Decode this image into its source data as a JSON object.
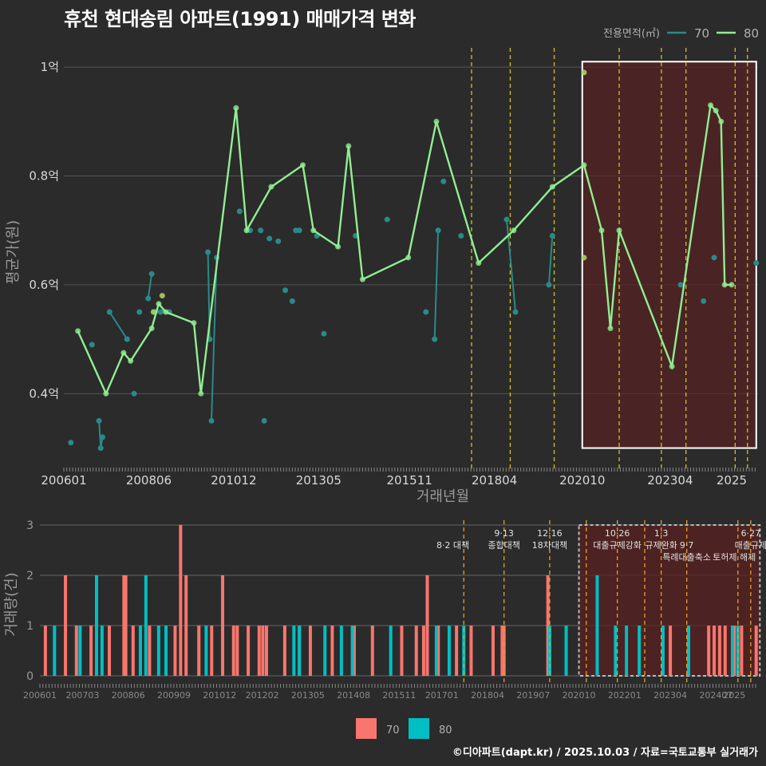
{
  "title": "휴천 현대송림 아파트(1991) 매매가격 변화",
  "credit": "©디아파트(dapt.kr) / 2025.10.03 / 자료=국토교통부 실거래가",
  "colors": {
    "background": "#2b2b2b",
    "grid": "#555555",
    "series70": "#2a8a8a",
    "series80": "#90ee90",
    "bar70": "#f8766d",
    "bar80": "#00bfc4",
    "policy": "#d4c020",
    "highlight_fill": "#5a2020",
    "text_muted": "#9a9a9a"
  },
  "chart_data": [
    {
      "type": "line",
      "title": "휴천 현대송림 아파트(1991) 매매가격 변화",
      "xlabel": "거래년월",
      "ylabel": "평균가(원)",
      "ylim": [
        0.27,
        1.05
      ],
      "xlim": [
        2006.0,
        2025.75
      ],
      "yticks": [
        0.4,
        0.6,
        0.8,
        1.0
      ],
      "ytick_labels": [
        "0.4억",
        "0.6억",
        "0.8억",
        "1억"
      ],
      "xtick_positions": [
        2006.0,
        2008.417,
        2010.833,
        2013.25,
        2015.833,
        2018.25,
        2020.75,
        2023.25,
        2025.0
      ],
      "xtick_labels": [
        "200601",
        "200806",
        "201012",
        "201305",
        "201511",
        "201804",
        "202010",
        "202304",
        "2025"
      ],
      "legend_title": "전용면적(㎡)",
      "legend": [
        "70",
        "80"
      ],
      "highlight_range": [
        2020.75,
        2025.7
      ],
      "policy_lines": [
        2017.6,
        2018.7,
        2019.95,
        2021.8,
        2023.0,
        2023.7,
        2025.1,
        2025.45
      ],
      "series": [
        {
          "name": "80",
          "x": [
            2006.4,
            2007.2,
            2007.7,
            2007.9,
            2008.5,
            2008.7,
            2008.9,
            2009.7,
            2009.9,
            2010.9,
            2011.2,
            2011.9,
            2012.8,
            2013.1,
            2013.8,
            2014.1,
            2014.5,
            2015.8,
            2016.6,
            2017.8,
            2018.8,
            2019.9,
            2020.8,
            2021.3,
            2021.55,
            2021.8,
            2023.3,
            2024.4,
            2024.55,
            2024.7,
            2024.8,
            2025.0
          ],
          "values": [
            0.515,
            0.4,
            0.475,
            0.46,
            0.52,
            0.565,
            0.55,
            0.53,
            0.4,
            0.925,
            0.7,
            0.78,
            0.82,
            0.7,
            0.67,
            0.855,
            0.61,
            0.65,
            0.9,
            0.64,
            0.7,
            0.78,
            0.82,
            0.7,
            0.52,
            0.7,
            0.45,
            0.93,
            0.92,
            0.9,
            0.6,
            0.6
          ]
        },
        {
          "name": "70",
          "x": [
            2006.2,
            2006.8,
            2007.0,
            2007.05,
            2007.1,
            2007.3,
            2007.8,
            2008.0,
            2008.15,
            2008.4,
            2008.5,
            2008.6,
            2008.75,
            2009.0,
            2010.1,
            2010.15,
            2010.2,
            2010.35,
            2011.0,
            2011.3,
            2011.6,
            2011.7,
            2011.85,
            2012.1,
            2012.3,
            2012.5,
            2012.6,
            2012.7,
            2013.2,
            2013.4,
            2014.3,
            2015.2,
            2016.3,
            2016.55,
            2016.65,
            2016.8,
            2017.3,
            2018.6,
            2018.85,
            2019.8,
            2019.9,
            2023.55,
            2024.2,
            2024.5,
            2025.7
          ],
          "values": [
            0.31,
            0.49,
            0.35,
            0.3,
            0.32,
            0.55,
            0.5,
            0.4,
            0.55,
            0.575,
            0.62,
            0.55,
            0.55,
            0.55,
            0.66,
            0.5,
            0.35,
            0.65,
            0.735,
            0.7,
            0.7,
            0.35,
            0.685,
            0.68,
            0.59,
            0.57,
            0.7,
            0.7,
            0.69,
            0.51,
            0.69,
            0.72,
            0.55,
            0.5,
            0.7,
            0.79,
            0.69,
            0.72,
            0.55,
            0.6,
            0.69,
            0.6,
            0.57,
            0.65,
            0.64
          ]
        }
      ]
    },
    {
      "type": "bar",
      "xlabel": "",
      "ylabel": "거래량(건)",
      "ylim": [
        0,
        3
      ],
      "yticks": [
        0,
        1,
        2,
        3
      ],
      "xtick_positions": [
        2006.0,
        2007.167,
        2008.417,
        2009.667,
        2010.917,
        2012.083,
        2013.333,
        2014.583,
        2015.833,
        2017.0,
        2018.25,
        2019.5,
        2020.75,
        2022.0,
        2023.25,
        2024.5,
        2025.0
      ],
      "xtick_labels": [
        "200601",
        "200703",
        "200806",
        "200909",
        "201012",
        "201202",
        "201305",
        "201408",
        "201511",
        "201701",
        "201804",
        "201907",
        "202010",
        "202201",
        "202304",
        "202407",
        "2025"
      ],
      "legend": [
        "70",
        "80"
      ],
      "highlight_range": [
        2020.75,
        2025.7
      ],
      "policy_lines": [
        2017.6,
        2018.7,
        2019.95,
        2020.95,
        2021.8,
        2022.55,
        2023.0,
        2023.7,
        2025.1,
        2025.45
      ],
      "annotations": [
        {
          "x": 2017.3,
          "label": "8·2 대책",
          "row": 1
        },
        {
          "x": 2018.7,
          "label": "9·13",
          "row": 0
        },
        {
          "x": 2018.7,
          "label": "종합대책",
          "row": 1
        },
        {
          "x": 2019.95,
          "label": "12·16",
          "row": 0
        },
        {
          "x": 2019.95,
          "label": "18차대책",
          "row": 1
        },
        {
          "x": 2021.8,
          "label": "10·26",
          "row": 0
        },
        {
          "x": 2021.8,
          "label": "대출규제강화",
          "row": 1
        },
        {
          "x": 2023.0,
          "label": "1·3",
          "row": 0
        },
        {
          "x": 2023.0,
          "label": "규제완화",
          "row": 1
        },
        {
          "x": 2023.7,
          "label": "9·7",
          "row": 1
        },
        {
          "x": 2023.7,
          "label": "특례대출축소",
          "row": 2
        },
        {
          "x": 2025.45,
          "label": "6·27",
          "row": 0
        },
        {
          "x": 2025.45,
          "label": "대출규제",
          "row": 1
        },
        {
          "x": 2025.0,
          "label": "토허제 해제",
          "row": 2
        }
      ],
      "series": [
        {
          "name": "70",
          "x": [
            2006.15,
            2006.7,
            2007.0,
            2007.4,
            2007.9,
            2008.3,
            2008.35,
            2008.55,
            2009.0,
            2009.7,
            2009.85,
            2010.0,
            2010.35,
            2010.7,
            2011.0,
            2011.3,
            2011.4,
            2011.7,
            2012.0,
            2012.1,
            2012.2,
            2012.7,
            2013.1,
            2013.4,
            2014.0,
            2014.6,
            2015.1,
            2015.9,
            2016.3,
            2016.5,
            2016.6,
            2016.9,
            2017.4,
            2017.8,
            2018.4,
            2018.65,
            2018.7,
            2019.9,
            2023.25,
            2024.3,
            2024.45,
            2024.6,
            2024.75,
            2025.0,
            2025.2,
            2025.6
          ],
          "values": [
            1,
            2,
            1,
            1,
            1,
            2,
            2,
            1,
            1,
            1,
            3,
            2,
            1,
            1,
            2,
            1,
            1,
            1,
            1,
            1,
            1,
            1,
            1,
            1,
            1,
            1,
            1,
            1,
            1,
            1,
            2,
            1,
            1,
            1,
            1,
            1,
            1,
            2,
            1,
            1,
            1,
            1,
            1,
            1,
            1,
            1
          ]
        },
        {
          "name": "80",
          "x": [
            2006.4,
            2007.1,
            2007.55,
            2007.7,
            2008.75,
            2008.9,
            2009.25,
            2009.45,
            2010.55,
            2012.95,
            2013.1,
            2013.8,
            2014.25,
            2014.55,
            2015.6,
            2016.85,
            2017.2,
            2017.6,
            2019.95,
            2020.4,
            2021.25,
            2021.75,
            2022.05,
            2022.4,
            2023.05,
            2023.75,
            2024.95,
            2025.1
          ],
          "values": [
            1,
            1,
            2,
            1,
            1,
            2,
            1,
            1,
            1,
            1,
            1,
            1,
            1,
            1,
            1,
            1,
            1,
            1,
            1,
            1,
            2,
            1,
            1,
            1,
            1,
            1,
            1,
            1
          ]
        }
      ]
    }
  ]
}
